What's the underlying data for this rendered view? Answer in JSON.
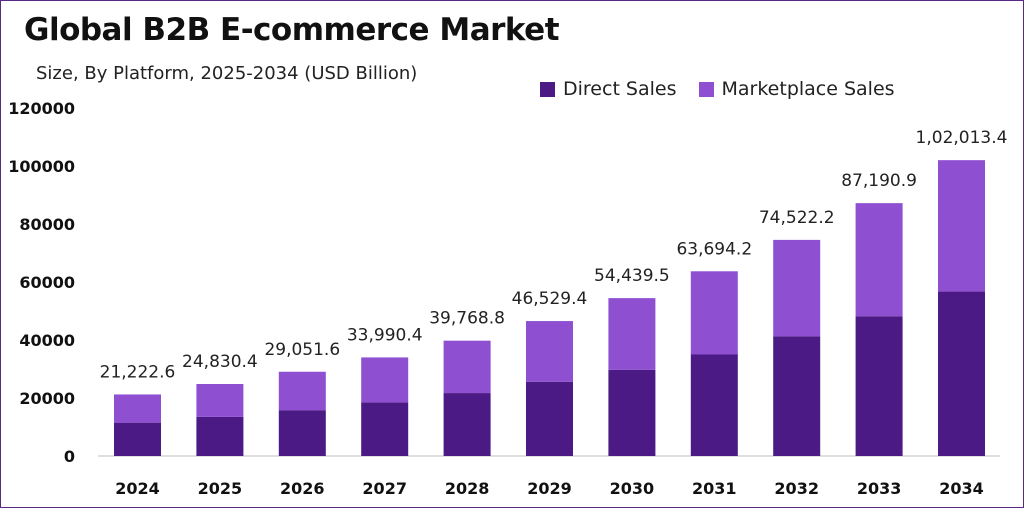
{
  "colors": {
    "direct": "#4b1a84",
    "marketplace": "#8e4fd1",
    "border": "#5b2a86"
  },
  "chart_data": {
    "type": "bar",
    "stacked": true,
    "title": "Global B2B E-commerce Market",
    "subtitle": "Size, By Platform, 2025-2034 (USD Billion)",
    "categories": [
      "2024",
      "2025",
      "2026",
      "2027",
      "2028",
      "2029",
      "2030",
      "2031",
      "2032",
      "2033",
      "2034"
    ],
    "series": [
      {
        "name": "Direct Sales",
        "values": [
          11500,
          13500,
          15800,
          18500,
          21700,
          25600,
          29700,
          35000,
          41300,
          48200,
          56700
        ]
      },
      {
        "name": "Marketplace Sales",
        "values": [
          9722.6,
          11330.4,
          13251.6,
          15490.4,
          18068.8,
          20929.4,
          24739.5,
          28694.2,
          33222.2,
          38990.9,
          45313.4
        ]
      }
    ],
    "totals": [
      "21,222.6",
      "24,830.4",
      "29,051.6",
      "33,990.4",
      "39,768.8",
      "46,529.4",
      "54,439.5",
      "63,694.2",
      "74,522.2",
      "87,190.9",
      "1,02,013.4"
    ],
    "y_ticks": [
      "0",
      "20000",
      "40000",
      "60000",
      "80000",
      "100000",
      "120000"
    ],
    "ylim": [
      0,
      120000
    ],
    "grid": false,
    "legend_position": "top-right"
  }
}
